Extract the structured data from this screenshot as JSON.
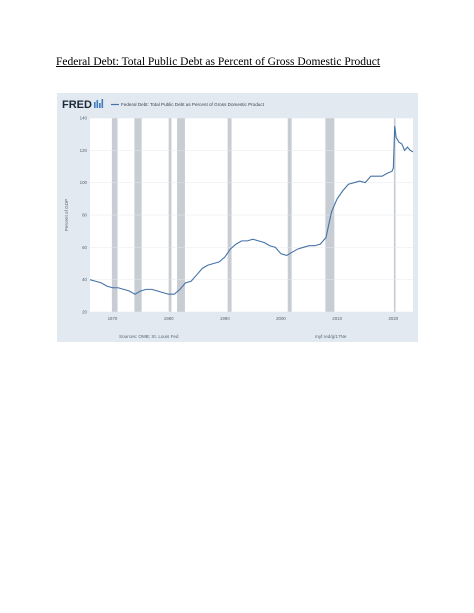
{
  "document": {
    "title": "Federal Debt: Total Public Debt as Percent of Gross Domestic Product"
  },
  "chart_data": {
    "type": "line",
    "logo": "FRED",
    "legend": "Federal Debt: Total Public Debt as Percent of Gross Domestic Product",
    "ylabel": "Percent of GDP",
    "xlabel": "",
    "ylim": [
      20,
      140
    ],
    "xlim": [
      1966,
      2023.5
    ],
    "y_ticks": [
      20,
      40,
      60,
      80,
      100,
      120,
      140
    ],
    "x_ticks": [
      1970,
      1980,
      1990,
      2000,
      2010,
      2020
    ],
    "grid": true,
    "line_color": "#4572a7",
    "recession_color": "#c8cdd3",
    "recessions": [
      [
        1969.9,
        1970.9
      ],
      [
        1973.9,
        1975.2
      ],
      [
        1980.0,
        1980.5
      ],
      [
        1981.5,
        1982.9
      ],
      [
        1990.5,
        1991.2
      ],
      [
        2001.2,
        2001.9
      ],
      [
        2007.9,
        2009.5
      ],
      [
        2020.1,
        2020.4
      ]
    ],
    "series": [
      {
        "x": [
          1966,
          1967,
          1968,
          1969,
          1970,
          1971,
          1972,
          1973,
          1974,
          1975,
          1976,
          1977,
          1978,
          1979,
          1980,
          1981,
          1982,
          1983,
          1984,
          1985,
          1986,
          1987,
          1988,
          1989,
          1990,
          1991,
          1992,
          1993,
          1994,
          1995,
          1996,
          1997,
          1998,
          1999,
          2000,
          2001,
          2002,
          2003,
          2004,
          2005,
          2006,
          2007,
          2008,
          2009,
          2010,
          2011,
          2012,
          2013,
          2014,
          2015,
          2016,
          2017,
          2018,
          2019,
          2019.75,
          2020.0,
          2020.25,
          2020.5,
          2021,
          2021.5,
          2022,
          2022.5,
          2023,
          2023.5
        ],
        "values": [
          40,
          39,
          38,
          36,
          35,
          35,
          34,
          33,
          31,
          33,
          34,
          34,
          33,
          32,
          31,
          31,
          34,
          38,
          39,
          43,
          47,
          49,
          50,
          51,
          54,
          59,
          62,
          64,
          64,
          65,
          64,
          63,
          61,
          60,
          56,
          55,
          57,
          59,
          60,
          61,
          61,
          62,
          66,
          82,
          90,
          95,
          99,
          100,
          101,
          100,
          104,
          104,
          104,
          106,
          107,
          109,
          135,
          128,
          125,
          124,
          120,
          122,
          120,
          119
        ]
      }
    ],
    "sources": "Sources: OMB; St. Louis Fed",
    "url": "myf.red/g/17Ne"
  }
}
